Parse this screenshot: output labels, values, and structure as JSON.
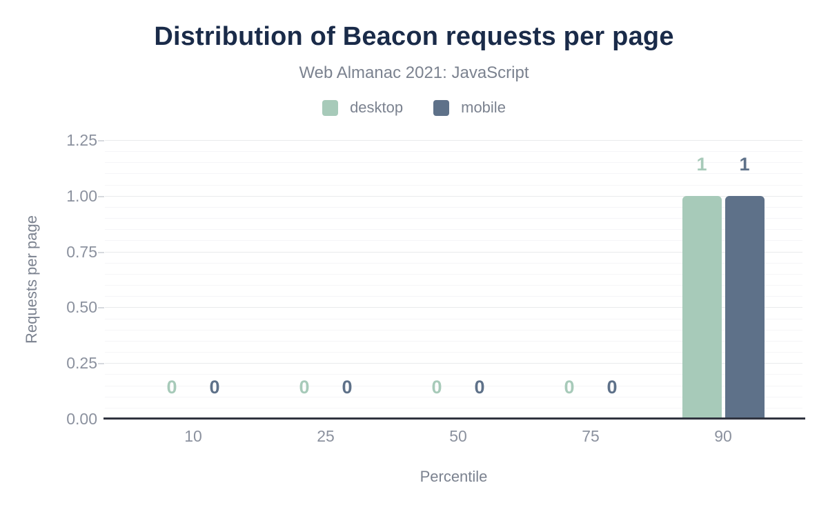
{
  "chart_data": {
    "type": "bar",
    "title": "Distribution of Beacon requests per page",
    "subtitle": "Web Almanac 2021: JavaScript",
    "xlabel": "Percentile",
    "ylabel": "Requests per page",
    "categories": [
      "10",
      "25",
      "50",
      "75",
      "90"
    ],
    "series": [
      {
        "name": "desktop",
        "color": "#a7cab9",
        "values": [
          0,
          0,
          0,
          0,
          1
        ]
      },
      {
        "name": "mobile",
        "color": "#5e7189",
        "values": [
          0,
          0,
          0,
          0,
          1
        ]
      }
    ],
    "value_labels": [
      {
        "series": "desktop",
        "labels": [
          "0",
          "0",
          "0",
          "0",
          "1"
        ]
      },
      {
        "series": "mobile",
        "labels": [
          "0",
          "0",
          "0",
          "0",
          "1"
        ]
      }
    ],
    "ylim": [
      0,
      1.25
    ],
    "y_major_step": 0.25,
    "y_minor_step": 0.05,
    "y_tick_labels": [
      "0.00",
      "0.25",
      "0.50",
      "0.75",
      "1.00",
      "1.25"
    ],
    "grid": "horizontal-on",
    "legend_position": "top"
  },
  "colors": {
    "title": "#1a2b49",
    "subtitle": "#7b828f",
    "axis_text": "#8b919e",
    "axis_title": "#7b828f",
    "axis_line": "#30333f",
    "grid_major": "#e9eaec",
    "grid_minor": "#f5f5f7",
    "background": "#ffffff"
  }
}
